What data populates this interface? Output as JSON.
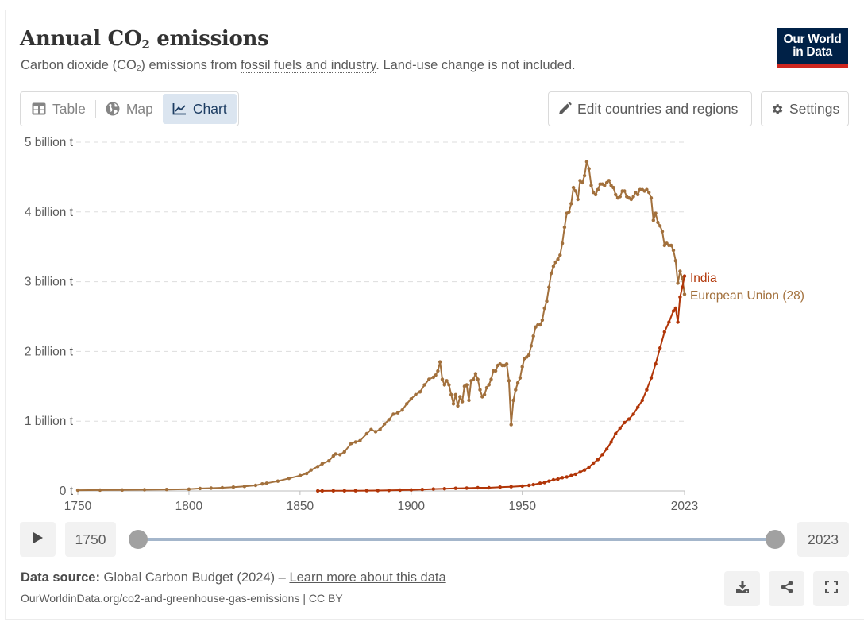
{
  "header": {
    "title_main": "Annual CO",
    "title_sub": "2",
    "title_end": " emissions",
    "subtitle_start": "Carbon dioxide (CO",
    "subtitle_sub": "2",
    "subtitle_mid": ") emissions from ",
    "subtitle_link": "fossil fuels and industry",
    "subtitle_end": ". Land-use change is not included.",
    "logo_line1": "Our World",
    "logo_line2": "in Data"
  },
  "tabs": [
    {
      "label": "Table",
      "icon": "table-icon",
      "active": false
    },
    {
      "label": "Map",
      "icon": "globe-icon",
      "active": false
    },
    {
      "label": "Chart",
      "icon": "line-chart-icon",
      "active": true
    }
  ],
  "toolbar": {
    "edit_label": "Edit countries and regions",
    "settings_label": "Settings"
  },
  "timeline": {
    "start_year": "1750",
    "end_year": "2023",
    "range_start": 1750,
    "range_end": 2023
  },
  "footer": {
    "source_label": "Data source:",
    "source_text": " Global Carbon Budget (2024) – ",
    "learn_more": "Learn more about this data",
    "url_text": "OurWorldinData.org/co2-and-greenhouse-gas-emissions | CC BY"
  },
  "colors": {
    "eu": "#a2703c",
    "india": "#b13507",
    "grid": "#dddddd",
    "logo_bg": "#002147",
    "logo_bar": "#ce261e",
    "active_tab_bg": "#dbe5f0"
  },
  "chart_data": {
    "type": "line",
    "title": "Annual CO2 emissions",
    "xlabel": "",
    "ylabel": "",
    "xlim": [
      1750,
      2023
    ],
    "ylim": [
      0,
      5000000000
    ],
    "yticks": [
      {
        "value": 0,
        "label": "0 t"
      },
      {
        "value": 1000000000,
        "label": "1 billion t"
      },
      {
        "value": 2000000000,
        "label": "2 billion t"
      },
      {
        "value": 3000000000,
        "label": "3 billion t"
      },
      {
        "value": 4000000000,
        "label": "4 billion t"
      },
      {
        "value": 5000000000,
        "label": "5 billion t"
      }
    ],
    "xticks": [
      {
        "value": 1750,
        "label": "1750"
      },
      {
        "value": 1800,
        "label": "1800"
      },
      {
        "value": 1850,
        "label": "1850"
      },
      {
        "value": 1900,
        "label": "1900"
      },
      {
        "value": 1950,
        "label": "1950"
      },
      {
        "value": 2023,
        "label": "2023"
      }
    ],
    "grid": true,
    "legend": "right-end-labels",
    "series": [
      {
        "name": "European Union (28)",
        "color": "#a2703c",
        "units": "billion t",
        "points": [
          [
            1750,
            0.01
          ],
          [
            1760,
            0.012
          ],
          [
            1770,
            0.014
          ],
          [
            1780,
            0.017
          ],
          [
            1790,
            0.02
          ],
          [
            1800,
            0.025
          ],
          [
            1805,
            0.035
          ],
          [
            1810,
            0.04
          ],
          [
            1815,
            0.045
          ],
          [
            1820,
            0.055
          ],
          [
            1825,
            0.065
          ],
          [
            1830,
            0.08
          ],
          [
            1833,
            0.1
          ],
          [
            1835,
            0.11
          ],
          [
            1840,
            0.14
          ],
          [
            1845,
            0.18
          ],
          [
            1850,
            0.22
          ],
          [
            1853,
            0.25
          ],
          [
            1855,
            0.3
          ],
          [
            1858,
            0.35
          ],
          [
            1860,
            0.39
          ],
          [
            1863,
            0.43
          ],
          [
            1865,
            0.5
          ],
          [
            1866,
            0.53
          ],
          [
            1868,
            0.52
          ],
          [
            1870,
            0.56
          ],
          [
            1873,
            0.68
          ],
          [
            1875,
            0.7
          ],
          [
            1877,
            0.72
          ],
          [
            1880,
            0.82
          ],
          [
            1882,
            0.88
          ],
          [
            1884,
            0.85
          ],
          [
            1886,
            0.88
          ],
          [
            1888,
            0.96
          ],
          [
            1890,
            1.02
          ],
          [
            1892,
            1.1
          ],
          [
            1894,
            1.12
          ],
          [
            1896,
            1.16
          ],
          [
            1898,
            1.25
          ],
          [
            1900,
            1.32
          ],
          [
            1902,
            1.38
          ],
          [
            1904,
            1.42
          ],
          [
            1906,
            1.52
          ],
          [
            1908,
            1.6
          ],
          [
            1910,
            1.63
          ],
          [
            1911,
            1.66
          ],
          [
            1912,
            1.72
          ],
          [
            1913,
            1.85
          ],
          [
            1914,
            1.6
          ],
          [
            1915,
            1.52
          ],
          [
            1916,
            1.58
          ],
          [
            1917,
            1.52
          ],
          [
            1918,
            1.38
          ],
          [
            1919,
            1.25
          ],
          [
            1920,
            1.38
          ],
          [
            1921,
            1.22
          ],
          [
            1922,
            1.35
          ],
          [
            1923,
            1.28
          ],
          [
            1924,
            1.5
          ],
          [
            1925,
            1.52
          ],
          [
            1926,
            1.3
          ],
          [
            1927,
            1.58
          ],
          [
            1928,
            1.6
          ],
          [
            1929,
            1.68
          ],
          [
            1930,
            1.6
          ],
          [
            1931,
            1.45
          ],
          [
            1932,
            1.35
          ],
          [
            1933,
            1.38
          ],
          [
            1934,
            1.48
          ],
          [
            1935,
            1.52
          ],
          [
            1936,
            1.6
          ],
          [
            1937,
            1.72
          ],
          [
            1938,
            1.72
          ],
          [
            1939,
            1.8
          ],
          [
            1940,
            1.82
          ],
          [
            1941,
            1.8
          ],
          [
            1942,
            1.8
          ],
          [
            1943,
            1.82
          ],
          [
            1944,
            1.58
          ],
          [
            1945,
            0.95
          ],
          [
            1946,
            1.3
          ],
          [
            1947,
            1.45
          ],
          [
            1948,
            1.55
          ],
          [
            1949,
            1.62
          ],
          [
            1950,
            1.78
          ],
          [
            1951,
            1.9
          ],
          [
            1952,
            1.92
          ],
          [
            1953,
            1.95
          ],
          [
            1954,
            2.08
          ],
          [
            1955,
            2.22
          ],
          [
            1956,
            2.35
          ],
          [
            1957,
            2.38
          ],
          [
            1958,
            2.38
          ],
          [
            1959,
            2.45
          ],
          [
            1960,
            2.62
          ],
          [
            1961,
            2.72
          ],
          [
            1962,
            2.92
          ],
          [
            1963,
            3.12
          ],
          [
            1964,
            3.22
          ],
          [
            1965,
            3.28
          ],
          [
            1966,
            3.32
          ],
          [
            1967,
            3.38
          ],
          [
            1968,
            3.55
          ],
          [
            1969,
            3.78
          ],
          [
            1970,
            3.98
          ],
          [
            1971,
            4.0
          ],
          [
            1972,
            4.12
          ],
          [
            1973,
            4.35
          ],
          [
            1974,
            4.3
          ],
          [
            1975,
            4.18
          ],
          [
            1976,
            4.45
          ],
          [
            1977,
            4.42
          ],
          [
            1978,
            4.52
          ],
          [
            1979,
            4.72
          ],
          [
            1980,
            4.62
          ],
          [
            1981,
            4.38
          ],
          [
            1982,
            4.28
          ],
          [
            1983,
            4.25
          ],
          [
            1984,
            4.32
          ],
          [
            1985,
            4.4
          ],
          [
            1986,
            4.4
          ],
          [
            1987,
            4.38
          ],
          [
            1988,
            4.42
          ],
          [
            1989,
            4.45
          ],
          [
            1990,
            4.38
          ],
          [
            1991,
            4.35
          ],
          [
            1992,
            4.25
          ],
          [
            1993,
            4.2
          ],
          [
            1994,
            4.22
          ],
          [
            1995,
            4.3
          ],
          [
            1996,
            4.3
          ],
          [
            1997,
            4.22
          ],
          [
            1998,
            4.2
          ],
          [
            1999,
            4.18
          ],
          [
            2000,
            4.22
          ],
          [
            2001,
            4.28
          ],
          [
            2002,
            4.25
          ],
          [
            2003,
            4.32
          ],
          [
            2004,
            4.32
          ],
          [
            2005,
            4.3
          ],
          [
            2006,
            4.32
          ],
          [
            2007,
            4.28
          ],
          [
            2008,
            4.2
          ],
          [
            2009,
            3.88
          ],
          [
            2010,
            3.98
          ],
          [
            2011,
            3.85
          ],
          [
            2012,
            3.8
          ],
          [
            2013,
            3.72
          ],
          [
            2014,
            3.52
          ],
          [
            2015,
            3.55
          ],
          [
            2016,
            3.52
          ],
          [
            2017,
            3.52
          ],
          [
            2018,
            3.45
          ],
          [
            2019,
            3.3
          ],
          [
            2020,
            2.98
          ],
          [
            2021,
            3.15
          ],
          [
            2022,
            3.05
          ],
          [
            2023,
            2.82
          ]
        ]
      },
      {
        "name": "India",
        "color": "#b13507",
        "units": "billion t",
        "points": [
          [
            1858,
            0.001
          ],
          [
            1860,
            0.001
          ],
          [
            1865,
            0.002
          ],
          [
            1870,
            0.002
          ],
          [
            1875,
            0.003
          ],
          [
            1880,
            0.004
          ],
          [
            1885,
            0.006
          ],
          [
            1890,
            0.008
          ],
          [
            1895,
            0.011
          ],
          [
            1900,
            0.015
          ],
          [
            1905,
            0.02
          ],
          [
            1910,
            0.027
          ],
          [
            1915,
            0.032
          ],
          [
            1920,
            0.038
          ],
          [
            1925,
            0.04
          ],
          [
            1930,
            0.045
          ],
          [
            1935,
            0.045
          ],
          [
            1940,
            0.055
          ],
          [
            1945,
            0.06
          ],
          [
            1950,
            0.07
          ],
          [
            1953,
            0.08
          ],
          [
            1955,
            0.09
          ],
          [
            1958,
            0.11
          ],
          [
            1960,
            0.12
          ],
          [
            1962,
            0.14
          ],
          [
            1964,
            0.16
          ],
          [
            1966,
            0.17
          ],
          [
            1968,
            0.19
          ],
          [
            1970,
            0.2
          ],
          [
            1972,
            0.22
          ],
          [
            1974,
            0.24
          ],
          [
            1976,
            0.27
          ],
          [
            1978,
            0.3
          ],
          [
            1980,
            0.34
          ],
          [
            1982,
            0.4
          ],
          [
            1984,
            0.45
          ],
          [
            1986,
            0.52
          ],
          [
            1988,
            0.6
          ],
          [
            1990,
            0.7
          ],
          [
            1992,
            0.82
          ],
          [
            1994,
            0.9
          ],
          [
            1996,
            0.98
          ],
          [
            1998,
            1.03
          ],
          [
            2000,
            1.1
          ],
          [
            2002,
            1.2
          ],
          [
            2004,
            1.3
          ],
          [
            2006,
            1.45
          ],
          [
            2008,
            1.62
          ],
          [
            2010,
            1.82
          ],
          [
            2012,
            2.05
          ],
          [
            2014,
            2.28
          ],
          [
            2016,
            2.42
          ],
          [
            2018,
            2.58
          ],
          [
            2019,
            2.62
          ],
          [
            2020,
            2.42
          ],
          [
            2021,
            2.78
          ],
          [
            2022,
            2.92
          ],
          [
            2023,
            3.08
          ]
        ]
      }
    ]
  }
}
